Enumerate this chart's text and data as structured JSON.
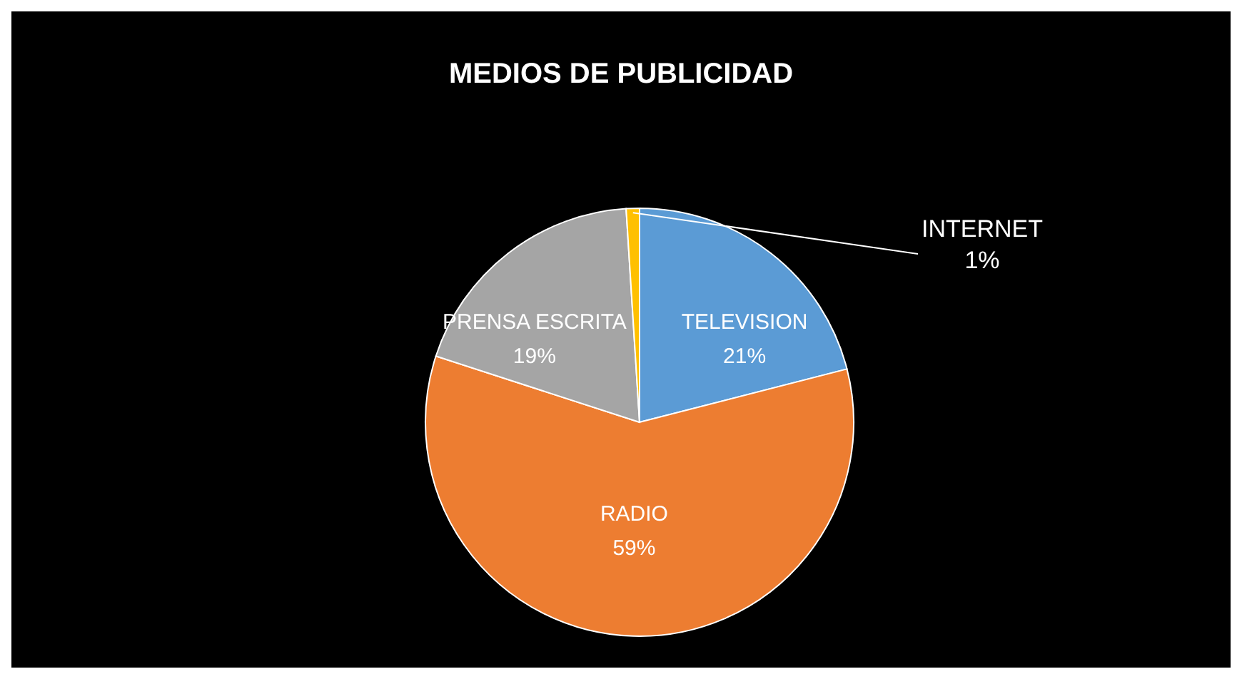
{
  "chart_data": {
    "type": "pie",
    "title": "MEDIOS DE PUBLICIDAD",
    "categories": [
      "TELEVISION",
      "RADIO",
      "PRENSA ESCRITA",
      "INTERNET"
    ],
    "values": [
      21,
      59,
      19,
      1
    ],
    "value_labels": [
      "21%",
      "59%",
      "19%",
      "1%"
    ],
    "colors": [
      "#5b9bd5",
      "#ed7d31",
      "#a5a5a5",
      "#ffc000"
    ],
    "legend": false
  }
}
